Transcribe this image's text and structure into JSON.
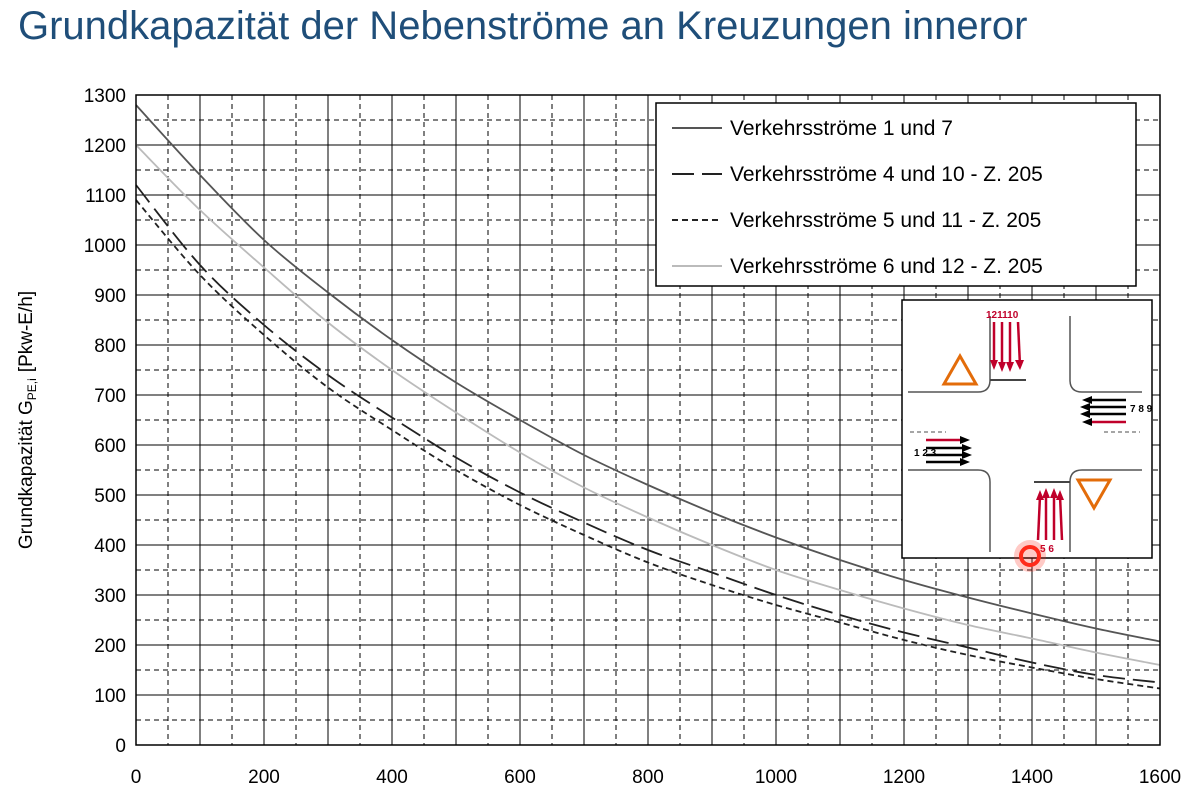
{
  "page_title": "Grundkapazität der Nebenströme an Kreuzungen inneror",
  "chart_data": {
    "type": "line",
    "title": "",
    "xlabel": "",
    "ylabel_main": "Grundkapazität G",
    "ylabel_sub": "PE,i",
    "ylabel_unit": "[Pkw-E/h]",
    "xlim": [
      0,
      1600
    ],
    "ylim": [
      0,
      1300
    ],
    "x_ticks": [
      0,
      200,
      400,
      600,
      800,
      1000,
      1200,
      1400,
      1600
    ],
    "y_ticks": [
      0,
      100,
      200,
      300,
      400,
      500,
      600,
      700,
      800,
      900,
      1000,
      1100,
      1200,
      1300
    ],
    "grid": "major solid, minor dashed",
    "legend_position": "top-right",
    "x": [
      0,
      100,
      200,
      300,
      400,
      500,
      600,
      700,
      800,
      900,
      1000,
      1100,
      1200,
      1300,
      1400,
      1500,
      1600
    ],
    "series": [
      {
        "name": "Verkehrsströme 1 und 7",
        "style": "solid",
        "color": "#555555",
        "values": [
          1280,
          1140,
          1010,
          905,
          810,
          725,
          650,
          580,
          520,
          465,
          415,
          370,
          330,
          295,
          263,
          233,
          207
        ]
      },
      {
        "name": "Verkehrsströme 4 und 10 - Z. 205",
        "style": "longdash",
        "color": "#222222",
        "values": [
          1120,
          960,
          840,
          740,
          655,
          575,
          505,
          445,
          390,
          345,
          300,
          260,
          225,
          195,
          165,
          140,
          125
        ]
      },
      {
        "name": "Verkehrsströme 5 und 11 - Z. 205",
        "style": "shortdash",
        "color": "#222222",
        "values": [
          1090,
          940,
          820,
          715,
          630,
          550,
          480,
          420,
          365,
          320,
          280,
          245,
          210,
          180,
          155,
          132,
          113
        ]
      },
      {
        "name": "Verkehrsströme 6 und 12 - Z. 205",
        "style": "solid",
        "color": "#bbbbbb",
        "values": [
          1200,
          1070,
          955,
          845,
          750,
          665,
          585,
          515,
          455,
          400,
          350,
          310,
          273,
          240,
          213,
          185,
          160
        ]
      }
    ]
  },
  "inset": {
    "top_label": "121110",
    "bottom_label": "5 6",
    "left_label": "1 2 3",
    "right_label": "7 8 9",
    "yield_color": "#e36c0a",
    "arrow_red": "#c0002a",
    "arrow_black": "#000000",
    "marker_color": "#ff2a1a"
  }
}
